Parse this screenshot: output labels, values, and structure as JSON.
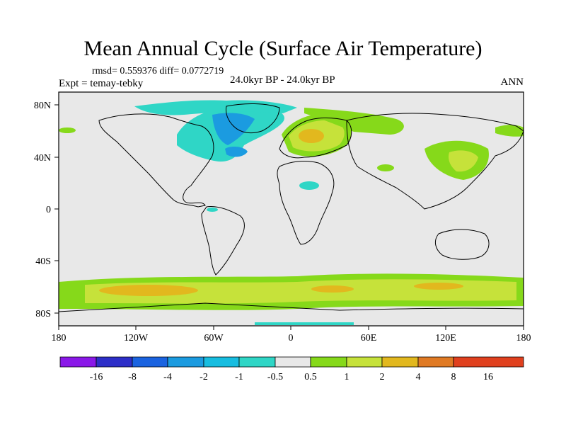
{
  "title": "Mean Annual Cycle (Surface Air Temperature)",
  "stats_text": "rmsd= 0.559376 diff= 0.0772719",
  "experiment": "Expt = temay-tebky",
  "period": "24.0kyr BP - 24.0kyr BP",
  "season": "ANN",
  "lat_ticks": [
    "80N",
    "40N",
    "0",
    "40S",
    "80S"
  ],
  "lon_ticks": [
    "180",
    "120W",
    "60W",
    "0",
    "60E",
    "120E",
    "180"
  ],
  "colorbar": {
    "labels": [
      "-16",
      "-8",
      "-4",
      "-2",
      "-1",
      "-0.5",
      "0.5",
      "1",
      "2",
      "4",
      "8",
      "16"
    ],
    "colors": [
      "#8a18e8",
      "#2d2ec8",
      "#1a63e0",
      "#1b9be0",
      "#17bde0",
      "#2fd6c6",
      "#e8e8e8",
      "#86d91a",
      "#c6e23a",
      "#e2b81e",
      "#e07a24",
      "#e0401e"
    ]
  },
  "palette": {
    "background": "#e8e8e8",
    "land_outline": "#000000"
  }
}
